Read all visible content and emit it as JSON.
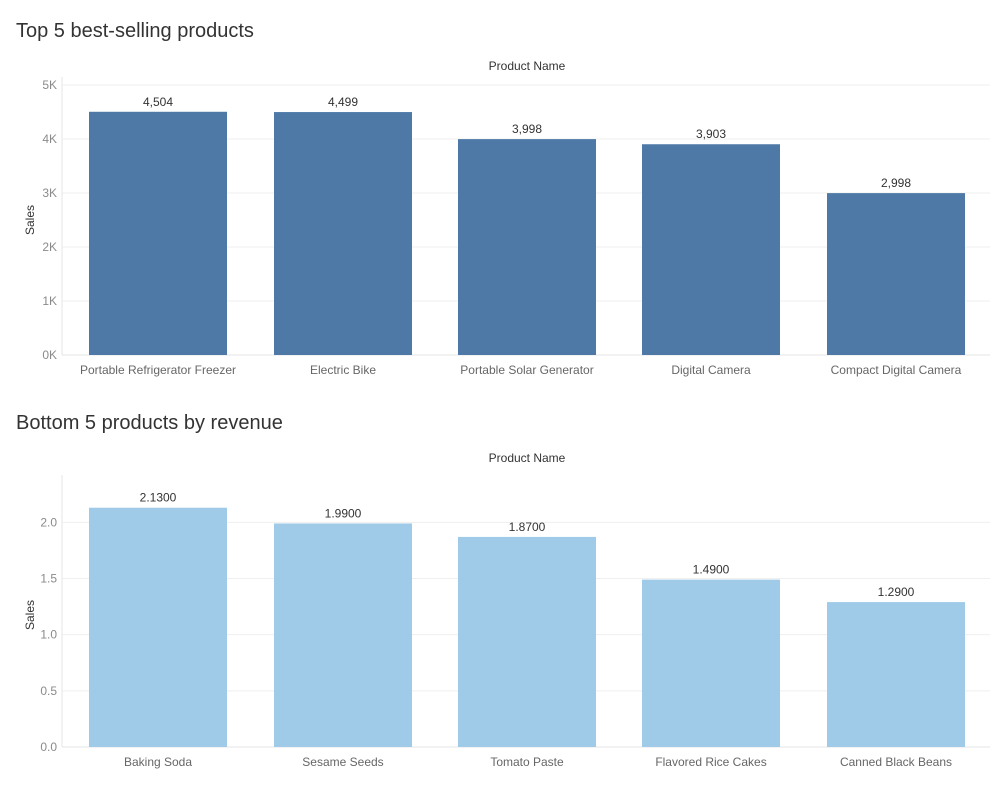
{
  "chart_data": [
    {
      "type": "bar",
      "title": "Top 5 best-selling products",
      "xlabel": "Product Name",
      "ylabel": "Sales",
      "categories": [
        "Portable Refrigerator Freezer",
        "Electric Bike",
        "Portable Solar Generator",
        "Digital Camera",
        "Compact Digital Camera"
      ],
      "values": [
        4504,
        4499,
        3998,
        3903,
        2998
      ],
      "value_labels": [
        "4,504",
        "4,499",
        "3,998",
        "3,903",
        "2,998"
      ],
      "yticks": [
        0,
        1000,
        2000,
        3000,
        4000,
        5000
      ],
      "ytick_labels": [
        "0K",
        "1K",
        "2K",
        "3K",
        "4K",
        "5K"
      ],
      "ylim": [
        0,
        5000
      ],
      "grid": true,
      "color": "#4e79a7"
    },
    {
      "type": "bar",
      "title": "Bottom 5 products by revenue",
      "xlabel": "Product Name",
      "ylabel": "Sales",
      "categories": [
        "Baking Soda",
        "Sesame Seeds",
        "Tomato Paste",
        "Flavored Rice Cakes",
        "Canned Black Beans"
      ],
      "values": [
        2.13,
        1.99,
        1.87,
        1.49,
        1.29
      ],
      "value_labels": [
        "2.1300",
        "1.9900",
        "1.8700",
        "1.4900",
        "1.2900"
      ],
      "yticks": [
        0,
        0.5,
        1.0,
        1.5,
        2.0
      ],
      "ytick_labels": [
        "0.0",
        "0.5",
        "1.0",
        "1.5",
        "2.0"
      ],
      "ylim": [
        0,
        2.35
      ],
      "grid": true,
      "color": "#a0cbe8"
    }
  ]
}
